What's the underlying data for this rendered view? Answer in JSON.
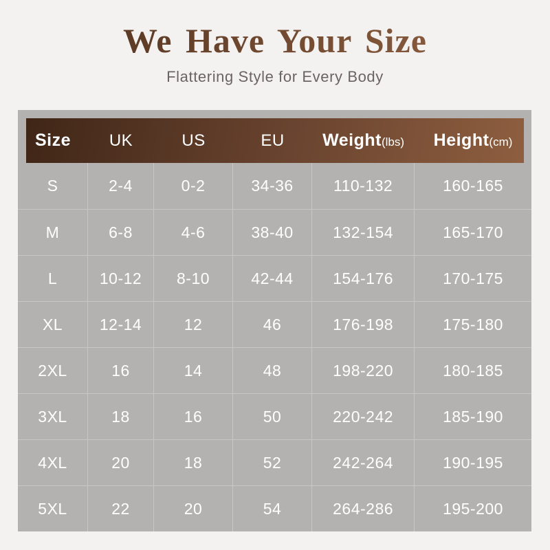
{
  "page": {
    "title": "We Have Your Size",
    "subtitle": "Flattering Style for Every Body"
  },
  "colors": {
    "page_background": "#f3f2f0",
    "table_background": "#b3b2b0",
    "header_gradient_left": "#402617",
    "header_gradient_right": "#8e5e3f",
    "title_brown_left": "#543420",
    "title_brown_right": "#8d5f41",
    "subtitle_gray": "#6b6462",
    "table_text": "#ffffff",
    "grid_line": "#c8c7c5"
  },
  "table": {
    "columns": [
      {
        "label": "Size",
        "unit": "",
        "bold": true
      },
      {
        "label": "UK",
        "unit": "",
        "bold": false
      },
      {
        "label": "US",
        "unit": "",
        "bold": false
      },
      {
        "label": "EU",
        "unit": "",
        "bold": false
      },
      {
        "label": "Weight",
        "unit": "(lbs)",
        "bold": true
      },
      {
        "label": "Height",
        "unit": "(cm)",
        "bold": true
      }
    ],
    "rows": [
      [
        "S",
        "2-4",
        "0-2",
        "34-36",
        "110-132",
        "160-165"
      ],
      [
        "M",
        "6-8",
        "4-6",
        "38-40",
        "132-154",
        "165-170"
      ],
      [
        "L",
        "10-12",
        "8-10",
        "42-44",
        "154-176",
        "170-175"
      ],
      [
        "XL",
        "12-14",
        "12",
        "46",
        "176-198",
        "175-180"
      ],
      [
        "2XL",
        "16",
        "14",
        "48",
        "198-220",
        "180-185"
      ],
      [
        "3XL",
        "18",
        "16",
        "50",
        "220-242",
        "185-190"
      ],
      [
        "4XL",
        "20",
        "18",
        "52",
        "242-264",
        "190-195"
      ],
      [
        "5XL",
        "22",
        "20",
        "54",
        "264-286",
        "195-200"
      ]
    ]
  }
}
